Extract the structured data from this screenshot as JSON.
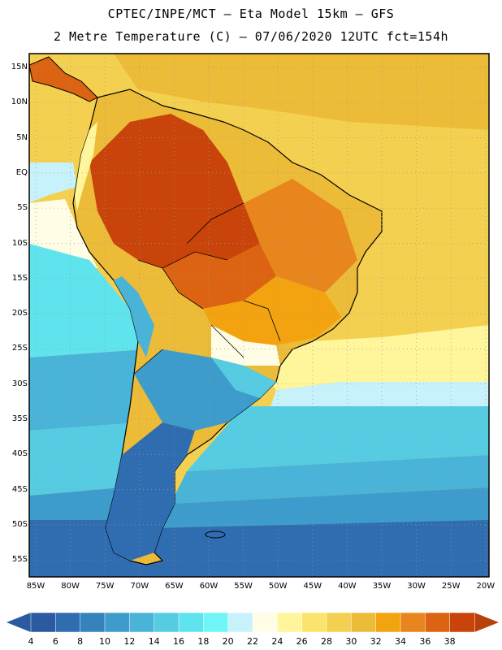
{
  "header": {
    "line1": "CPTEC/INPE/MCT –  Eta Model 15km – GFS",
    "line2": "2 Metre Temperature (C) – 07/06/2020 12UTC fct=154h"
  },
  "map": {
    "region": "South America",
    "variable": "2 Metre Temperature",
    "units": "C",
    "lat_labels": [
      "15N",
      "10N",
      "5N",
      "EQ",
      "5S",
      "10S",
      "15S",
      "20S",
      "25S",
      "30S",
      "35S",
      "40S",
      "45S",
      "50S",
      "55S"
    ],
    "lon_labels": [
      "85W",
      "80W",
      "75W",
      "70W",
      "65W",
      "60W",
      "55W",
      "50W",
      "45W",
      "40W",
      "35W",
      "30W",
      "25W",
      "20W"
    ]
  },
  "colorbar": {
    "labels": [
      "4",
      "6",
      "8",
      "10",
      "12",
      "14",
      "16",
      "18",
      "20",
      "22",
      "24",
      "26",
      "28",
      "30",
      "32",
      "34",
      "36",
      "38"
    ],
    "colors": [
      "#2b5aa0",
      "#2f6cb0",
      "#3483bd",
      "#3d9ccc",
      "#49b3d8",
      "#56cce2",
      "#5fe3ec",
      "#6ef6f6",
      "#c8f2fb",
      "#fffde6",
      "#fff69b",
      "#fbe46c",
      "#f3d04f",
      "#ecbb38",
      "#f2a30f",
      "#e8861d",
      "#dc6312",
      "#c9440a"
    ],
    "low_arrow_color": "#2b5aa0",
    "high_arrow_color": "#b8400a"
  }
}
